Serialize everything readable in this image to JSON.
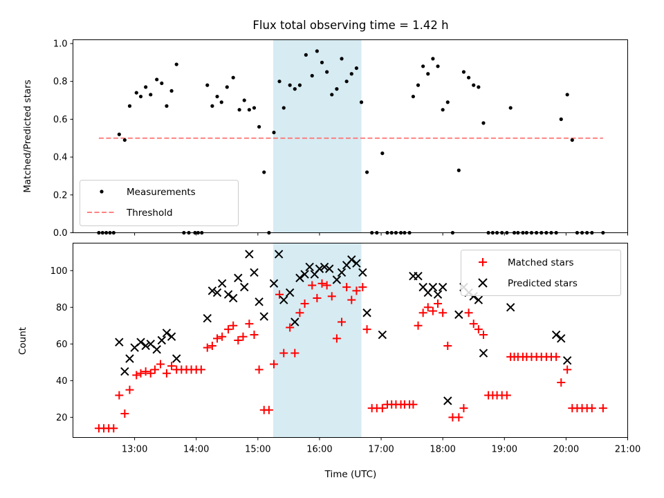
{
  "chart_data": [
    {
      "type": "scatter",
      "title": "Flux total observing time = 1.42 h",
      "ylabel": "Matched/Predicted stars",
      "xlim_hours": [
        12.0,
        21.0
      ],
      "ylim": [
        0,
        1.02
      ],
      "yticks": [
        0.0,
        0.2,
        0.4,
        0.6,
        0.8,
        1.0
      ],
      "ytick_labels": [
        "0.0",
        "0.2",
        "0.4",
        "0.6",
        "0.8",
        "1.0"
      ],
      "shaded_span_hours": [
        15.25,
        16.68
      ],
      "shaded_color": "#add8e6",
      "legend_position": "lower-left",
      "series": [
        {
          "name": "Measurements",
          "color": "#000000",
          "marker": "dot",
          "x": [
            12.42,
            12.48,
            12.54,
            12.6,
            12.66,
            12.75,
            12.84,
            12.92,
            13.03,
            13.1,
            13.18,
            13.26,
            13.36,
            13.44,
            13.52,
            13.6,
            13.68,
            13.8,
            13.88,
            13.98,
            14.03,
            14.09,
            14.18,
            14.26,
            14.34,
            14.41,
            14.5,
            14.6,
            14.7,
            14.78,
            14.86,
            14.94,
            15.02,
            15.1,
            15.18,
            15.26,
            15.35,
            15.42,
            15.52,
            15.6,
            15.68,
            15.78,
            15.88,
            15.96,
            16.04,
            16.12,
            16.2,
            16.28,
            16.36,
            16.44,
            16.52,
            16.6,
            16.68,
            16.77,
            16.85,
            16.93,
            17.02,
            17.1,
            17.17,
            17.24,
            17.32,
            17.38,
            17.46,
            17.52,
            17.6,
            17.68,
            17.76,
            17.84,
            17.92,
            18.0,
            18.08,
            18.16,
            18.26,
            18.34,
            18.42,
            18.5,
            18.58,
            18.66,
            18.74,
            18.81,
            18.88,
            18.96,
            19.04,
            19.1,
            19.16,
            19.22,
            19.3,
            19.36,
            19.44,
            19.52,
            19.6,
            19.68,
            19.76,
            19.84,
            19.92,
            20.02,
            20.1,
            20.18,
            20.26,
            20.34,
            20.42,
            20.6
          ],
          "y": [
            0.0,
            0.0,
            0.0,
            0.0,
            0.0,
            0.52,
            0.49,
            0.67,
            0.74,
            0.72,
            0.77,
            0.73,
            0.81,
            0.79,
            0.67,
            0.75,
            0.89,
            0.0,
            0.0,
            0.0,
            0.0,
            0.0,
            0.78,
            0.67,
            0.72,
            0.69,
            0.77,
            0.82,
            0.65,
            0.7,
            0.65,
            0.66,
            0.56,
            0.32,
            0.0,
            0.53,
            0.8,
            0.66,
            0.78,
            0.76,
            0.78,
            0.94,
            0.83,
            0.96,
            0.9,
            0.85,
            0.73,
            0.76,
            0.92,
            0.8,
            0.84,
            0.87,
            0.69,
            0.32,
            0.0,
            0.0,
            0.42,
            0.0,
            0.0,
            0.0,
            0.0,
            0.0,
            0.0,
            0.72,
            0.78,
            0.88,
            0.84,
            0.92,
            0.88,
            0.65,
            0.69,
            0.0,
            0.33,
            0.85,
            0.82,
            0.78,
            0.77,
            0.58,
            0.0,
            0.0,
            0.0,
            0.0,
            0.0,
            0.66,
            0.0,
            0.0,
            0.0,
            0.0,
            0.0,
            0.0,
            0.0,
            0.0,
            0.0,
            0.0,
            0.6,
            0.73,
            0.49,
            0.0,
            0.0,
            0.0,
            0.0,
            0.0
          ]
        },
        {
          "name": "Threshold",
          "color": "#ff7070",
          "style": "dashed",
          "x": [
            12.42,
            20.6
          ],
          "y": [
            0.5,
            0.5
          ]
        }
      ]
    },
    {
      "type": "scatter",
      "xlabel": "Time (UTC)",
      "ylabel": "Count",
      "xlim_hours": [
        12.0,
        21.0
      ],
      "ylim": [
        9,
        115
      ],
      "xticks_hours": [
        13,
        14,
        15,
        16,
        17,
        18,
        19,
        20,
        21
      ],
      "xtick_labels": [
        "13:00",
        "14:00",
        "15:00",
        "16:00",
        "17:00",
        "18:00",
        "19:00",
        "20:00",
        "21:00"
      ],
      "yticks": [
        20,
        40,
        60,
        80,
        100
      ],
      "ytick_labels": [
        "20",
        "40",
        "60",
        "80",
        "100"
      ],
      "shaded_span_hours": [
        15.25,
        16.68
      ],
      "shaded_color": "#add8e6",
      "legend_position": "top-right",
      "series": [
        {
          "name": "Matched stars",
          "color": "#ff0000",
          "marker": "plus",
          "x": [
            12.42,
            12.5,
            12.58,
            12.66,
            12.75,
            12.84,
            12.92,
            13.03,
            13.1,
            13.18,
            13.26,
            13.33,
            13.42,
            13.52,
            13.6,
            13.68,
            13.76,
            13.84,
            13.92,
            14.0,
            14.08,
            14.18,
            14.26,
            14.34,
            14.42,
            14.52,
            14.6,
            14.68,
            14.76,
            14.86,
            14.94,
            15.02,
            15.1,
            15.18,
            15.26,
            15.35,
            15.42,
            15.52,
            15.6,
            15.68,
            15.76,
            15.88,
            15.96,
            16.04,
            16.12,
            16.2,
            16.28,
            16.36,
            16.44,
            16.52,
            16.6,
            16.7,
            16.77,
            16.85,
            16.93,
            17.02,
            17.1,
            17.17,
            17.24,
            17.32,
            17.38,
            17.46,
            17.52,
            17.6,
            17.68,
            17.76,
            17.84,
            17.92,
            18.0,
            18.08,
            18.16,
            18.26,
            18.34,
            18.42,
            18.5,
            18.58,
            18.66,
            18.74,
            18.81,
            18.88,
            18.96,
            19.04,
            19.1,
            19.16,
            19.22,
            19.3,
            19.36,
            19.44,
            19.52,
            19.6,
            19.68,
            19.76,
            19.84,
            19.92,
            20.02,
            20.1,
            20.18,
            20.26,
            20.34,
            20.42,
            20.6
          ],
          "y": [
            14,
            14,
            14,
            14,
            32,
            22,
            35,
            43,
            44,
            45,
            44,
            46,
            49,
            44,
            48,
            46,
            46,
            46,
            46,
            46,
            46,
            58,
            59,
            63,
            64,
            68,
            70,
            62,
            64,
            71,
            65,
            46,
            24,
            24,
            49,
            87,
            55,
            69,
            55,
            77,
            82,
            92,
            85,
            93,
            92,
            86,
            63,
            72,
            91,
            84,
            89,
            91,
            68,
            25,
            25,
            25,
            27,
            27,
            27,
            27,
            27,
            27,
            27,
            70,
            77,
            80,
            78,
            82,
            77,
            59,
            20,
            20,
            25,
            77,
            71,
            68,
            65,
            32,
            32,
            32,
            32,
            32,
            53,
            53,
            53,
            53,
            53,
            53,
            53,
            53,
            53,
            53,
            53,
            39,
            46,
            25,
            25,
            25,
            25,
            25,
            25
          ]
        },
        {
          "name": "Predicted stars",
          "color": "#000000",
          "marker": "x",
          "x": [
            12.75,
            12.84,
            12.92,
            13.0,
            13.1,
            13.18,
            13.26,
            13.36,
            13.44,
            13.52,
            13.6,
            13.68,
            14.18,
            14.26,
            14.34,
            14.42,
            14.52,
            14.6,
            14.68,
            14.78,
            14.86,
            14.94,
            15.02,
            15.1,
            15.26,
            15.34,
            15.42,
            15.52,
            15.6,
            15.68,
            15.76,
            15.84,
            15.92,
            16.0,
            16.08,
            16.16,
            16.28,
            16.36,
            16.44,
            16.52,
            16.6,
            16.7,
            16.77,
            17.02,
            17.52,
            17.6,
            17.68,
            17.76,
            17.84,
            17.92,
            18.0,
            18.08,
            18.26,
            18.34,
            18.42,
            18.5,
            18.58,
            18.66,
            19.1,
            19.84,
            19.92,
            20.02
          ],
          "y": [
            61,
            45,
            52,
            58,
            61,
            59,
            60,
            57,
            62,
            66,
            64,
            52,
            74,
            89,
            88,
            93,
            87,
            85,
            96,
            91,
            109,
            99,
            83,
            75,
            93,
            109,
            84,
            88,
            72,
            96,
            98,
            102,
            98,
            101,
            102,
            101,
            95,
            99,
            103,
            106,
            104,
            99,
            77,
            65,
            97,
            97,
            91,
            88,
            91,
            87,
            91,
            29,
            76,
            91,
            88,
            86,
            84,
            55,
            80,
            65,
            63,
            51
          ]
        }
      ]
    }
  ]
}
